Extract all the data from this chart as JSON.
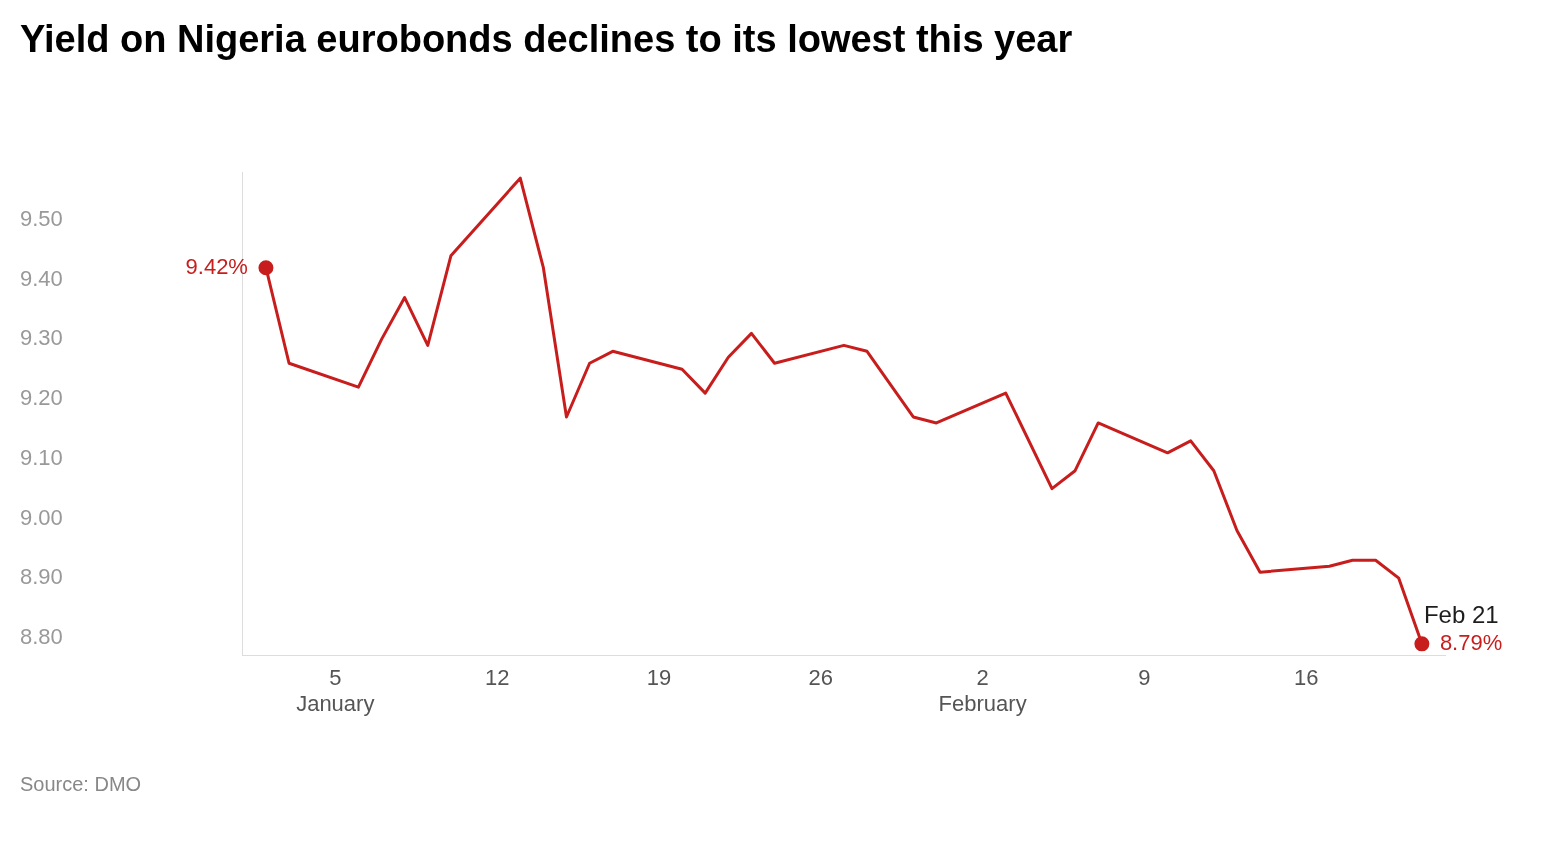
{
  "chart_data": {
    "type": "line",
    "title": "Yield on Nigeria eurobonds declines to its lowest this year",
    "x": [
      "--01-02",
      "--01-03",
      "--01-06",
      "--01-07",
      "--01-08",
      "--01-09",
      "--01-10",
      "--01-13",
      "--01-14",
      "--01-15",
      "--01-16",
      "--01-17",
      "--01-20",
      "--01-21",
      "--01-22",
      "--01-23",
      "--01-24",
      "--01-27",
      "--01-28",
      "--01-30",
      "--01-31",
      "--02-03",
      "--02-05",
      "--02-06",
      "--02-07",
      "--02-10",
      "--02-11",
      "--02-12",
      "--02-13",
      "--02-14",
      "--02-17",
      "--02-18",
      "--02-19",
      "--02-20",
      "--02-21"
    ],
    "series": [
      {
        "color": "#c71e1d",
        "values": [
          9.42,
          9.26,
          9.22,
          9.3,
          9.37,
          9.29,
          9.44,
          9.57,
          9.42,
          9.17,
          9.26,
          9.28,
          9.25,
          9.21,
          9.27,
          9.31,
          9.26,
          9.29,
          9.28,
          9.17,
          9.16,
          9.21,
          9.05,
          9.08,
          9.16,
          9.11,
          9.13,
          9.08,
          8.98,
          8.91,
          8.92,
          8.93,
          8.93,
          8.9,
          8.79
        ],
        "value_labels": [
          "9.42%",
          null,
          null,
          null,
          null,
          null,
          null,
          null,
          null,
          null,
          null,
          null,
          null,
          null,
          null,
          null,
          null,
          null,
          null,
          null,
          null,
          null,
          null,
          null,
          null,
          null,
          null,
          null,
          null,
          null,
          null,
          null,
          null,
          null,
          "8.79%"
        ]
      }
    ],
    "xticks": [
      {
        "value": "--01-05",
        "label": "5\nJanuary"
      },
      {
        "value": "--01-12",
        "label": "12"
      },
      {
        "value": "--01-19",
        "label": "19"
      },
      {
        "value": "--01-26",
        "label": "26"
      },
      {
        "value": "--02-02",
        "label": "2\nFebruary"
      },
      {
        "value": "--02-09",
        "label": "9"
      },
      {
        "value": "--02-16",
        "label": "16"
      }
    ],
    "xlim": [
      "--01-01",
      "--02-22"
    ],
    "ylim": [
      8.77,
      9.58
    ],
    "yticks": [
      {
        "value": 8.8,
        "label": "8.80"
      },
      {
        "value": 8.9,
        "label": "8.90"
      },
      {
        "value": 9.0,
        "label": "9.00"
      },
      {
        "value": 9.1,
        "label": "9.10"
      },
      {
        "value": 9.2,
        "label": "9.20"
      },
      {
        "value": 9.3,
        "label": "9.30"
      },
      {
        "value": 9.4,
        "label": "9.40"
      },
      {
        "value": 9.5,
        "label": "9.50"
      }
    ],
    "grid": false,
    "legend": false,
    "line_style": "solid",
    "annotations": [
      {
        "text": "Feb 21",
        "x": "--02-21",
        "y": 8.79
      },
      "Source: DMO"
    ]
  }
}
